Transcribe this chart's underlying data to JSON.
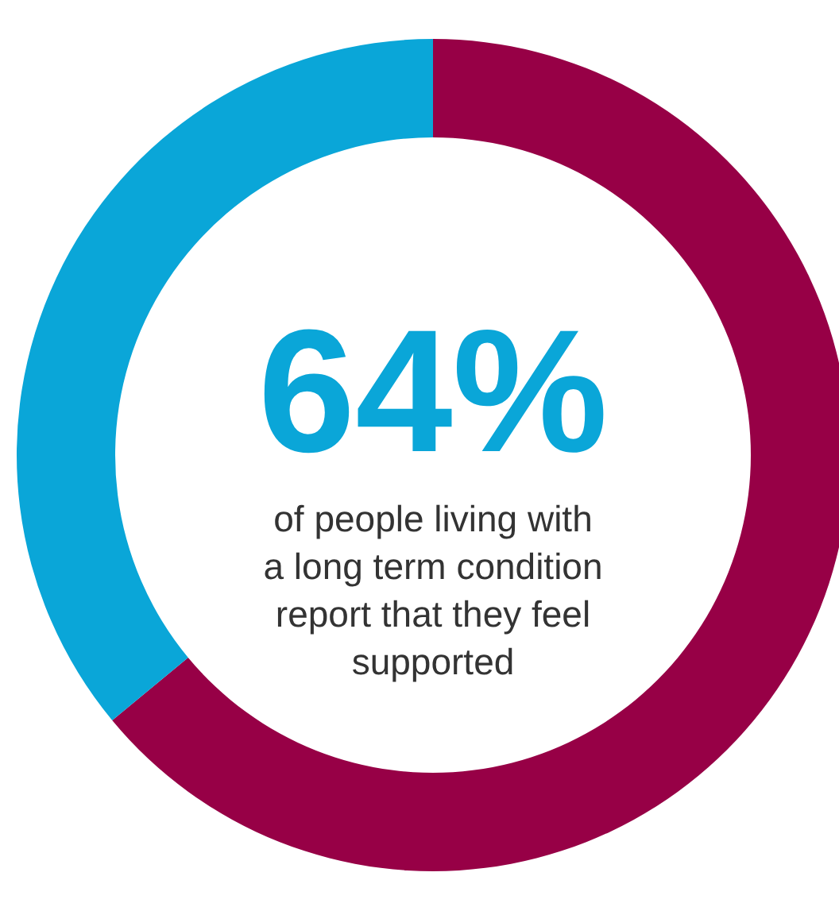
{
  "chart_data": {
    "type": "donut",
    "title": "64%",
    "subtitle": "of people living with a long term condition report that they feel supported",
    "categories": [
      null,
      null
    ],
    "values": [
      64,
      36
    ],
    "colors": [
      "#970046",
      "#0aa6d8"
    ]
  }
}
